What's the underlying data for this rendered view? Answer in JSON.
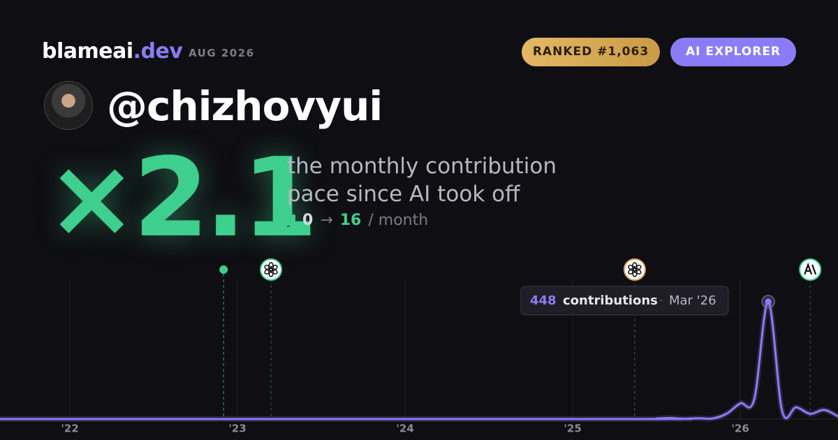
{
  "brand": {
    "name": "blameai",
    "tld": ".dev",
    "date": "AUG 2026"
  },
  "badges": [
    {
      "text": "RANKED #1,063",
      "color": "#e3b865"
    },
    {
      "text": "AI EXPLORER",
      "color": "#8b7cf6"
    }
  ],
  "username": "@chizhovyui",
  "multiplier": "×2.1",
  "description": [
    "the monthly contribution",
    "pace since AI took off"
  ],
  "pace": {
    "from": 0,
    "arrow": "→",
    "to": 16,
    "unit": "/ month"
  },
  "chart_data": {
    "type": "line",
    "color": "#8b7cf6",
    "x": [
      2021.583,
      2025.4,
      2025.5,
      2025.583,
      2025.667,
      2025.75,
      2025.833,
      2025.917,
      2026.0,
      2026.083,
      2026.167,
      2026.25,
      2026.333,
      2026.417,
      2026.5,
      2026.583
    ],
    "values": [
      0,
      0,
      2,
      4,
      1,
      3,
      2,
      20,
      60,
      75,
      448,
      30,
      45,
      20,
      35,
      10
    ],
    "xlim": [
      2021.583,
      2026.583
    ],
    "ylim": [
      0,
      560
    ],
    "xticks": [
      {
        "value": 2022,
        "label": "'22"
      },
      {
        "value": 2023,
        "label": "'23"
      },
      {
        "value": 2024,
        "label": "'24"
      },
      {
        "value": 2025,
        "label": "'25"
      },
      {
        "value": 2026,
        "label": "'26"
      }
    ],
    "grid": true,
    "events": [
      {
        "x": 2022.917,
        "color": "#3ecf8e",
        "icon": "dot"
      },
      {
        "x": 2023.2,
        "color": "#3ecf8e",
        "icon": "openai"
      },
      {
        "x": 2025.37,
        "color": "#e3a36a",
        "icon": "openai"
      },
      {
        "x": 2026.417,
        "color": "#3ecf8e",
        "icon": "anthropic"
      }
    ],
    "tooltip": {
      "index": 10,
      "value": 448,
      "label": "contributions",
      "separator": "·",
      "date": "Mar '26"
    }
  }
}
